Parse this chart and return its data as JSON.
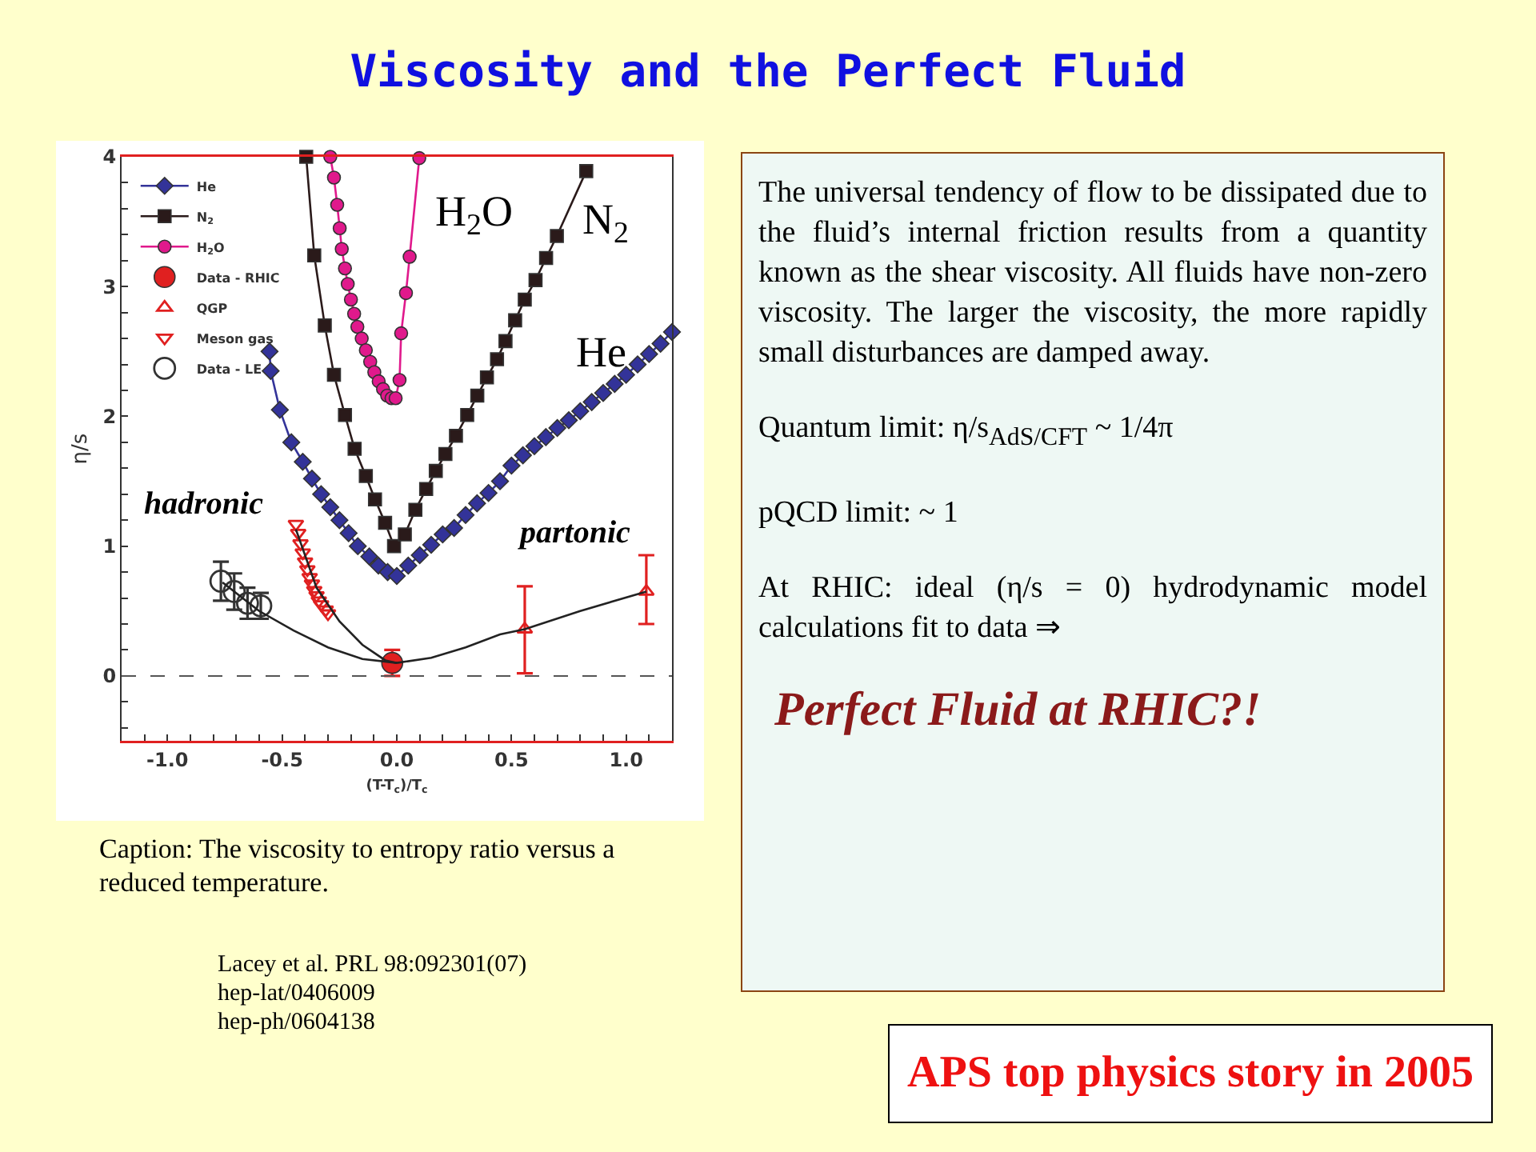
{
  "chart_data": {
    "type": "line",
    "title": "Viscosity and the Perfect Fluid",
    "xlabel": "(T-T$_{c}$)/T$_{c}$",
    "ylabel": "η/s",
    "xlim": [
      -1.2,
      1.2
    ],
    "ylim": [
      -0.5,
      4
    ],
    "xticks": [
      {
        "value": -1.1,
        "label": null
      },
      {
        "value": -1,
        "label": "-1.0"
      },
      {
        "value": -0.9,
        "label": null
      },
      {
        "value": -0.8,
        "label": null
      },
      {
        "value": -0.7,
        "label": null
      },
      {
        "value": -0.6,
        "label": null
      },
      {
        "value": -0.5,
        "label": "-0.5"
      },
      {
        "value": -0.4,
        "label": null
      },
      {
        "value": -0.3,
        "label": null
      },
      {
        "value": -0.2,
        "label": null
      },
      {
        "value": -0.1,
        "label": null
      },
      {
        "value": 0,
        "label": "0.0"
      },
      {
        "value": 0.1,
        "label": null
      },
      {
        "value": 0.2,
        "label": null
      },
      {
        "value": 0.3,
        "label": null
      },
      {
        "value": 0.4,
        "label": null
      },
      {
        "value": 0.5,
        "label": "0.5"
      },
      {
        "value": 0.6,
        "label": null
      },
      {
        "value": 0.7,
        "label": null
      },
      {
        "value": 0.8,
        "label": null
      },
      {
        "value": 0.9,
        "label": null
      },
      {
        "value": 1,
        "label": "1.0"
      },
      {
        "value": 1.1,
        "label": null
      }
    ],
    "yticks": [
      {
        "value": -0.4,
        "label": null
      },
      {
        "value": -0.2,
        "label": null
      },
      0,
      {
        "value": 0.2,
        "label": null
      },
      {
        "value": 0.4,
        "label": null
      },
      {
        "value": 0.6,
        "label": null
      },
      {
        "value": 0.8,
        "label": null
      },
      1,
      {
        "value": 1.2,
        "label": null
      },
      {
        "value": 1.4,
        "label": null
      },
      {
        "value": 1.6,
        "label": null
      },
      {
        "value": 1.8,
        "label": null
      },
      2,
      {
        "value": 2.2,
        "label": null
      },
      {
        "value": 2.4,
        "label": null
      },
      {
        "value": 2.6,
        "label": null
      },
      {
        "value": 2.8,
        "label": null
      },
      3,
      {
        "value": 3.2,
        "label": null
      },
      {
        "value": 3.4,
        "label": null
      },
      {
        "value": 3.6,
        "label": null
      },
      {
        "value": 3.8,
        "label": null
      },
      4
    ],
    "grid": false,
    "legend": "top left",
    "series": [
      {
        "name": "He",
        "type": "line",
        "marker": "diamond",
        "color": "#333399",
        "x": [
          -0.555,
          -0.55,
          -0.51,
          -0.46,
          -0.41,
          -0.37,
          -0.33,
          -0.29,
          -0.25,
          -0.21,
          -0.17,
          -0.12,
          -0.08,
          -0.04,
          0,
          0.05,
          0.1,
          0.15,
          0.2,
          0.25,
          0.3,
          0.35,
          0.4,
          0.45,
          0.5,
          0.55,
          0.6,
          0.65,
          0.7,
          0.75,
          0.8,
          0.85,
          0.9,
          0.95,
          1,
          1.05,
          1.1,
          1.15,
          1.2
        ],
        "values": [
          2.5,
          2.35,
          2.05,
          1.8,
          1.65,
          1.52,
          1.4,
          1.3,
          1.2,
          1.1,
          1.0,
          0.92,
          0.85,
          0.8,
          0.77,
          0.85,
          0.93,
          1.01,
          1.09,
          1.14,
          1.24,
          1.33,
          1.41,
          1.5,
          1.62,
          1.7,
          1.77,
          1.84,
          1.91,
          1.97,
          2.04,
          2.11,
          2.18,
          2.25,
          2.32,
          2.4,
          2.48,
          2.56,
          2.65
        ]
      },
      {
        "name": "N$_{2}$",
        "type": "line",
        "marker": "square",
        "color": "#2a1a1a",
        "x": [
          -0.395,
          -0.36,
          -0.314,
          -0.274,
          -0.226,
          -0.184,
          -0.135,
          -0.095,
          -0.051,
          -0.012,
          0.035,
          0.081,
          0.128,
          0.17,
          0.212,
          0.258,
          0.307,
          0.351,
          0.393,
          0.437,
          0.474,
          0.516,
          0.558,
          0.605,
          0.651,
          0.698,
          0.826
        ],
        "values": [
          4,
          3.24,
          2.7,
          2.32,
          2.01,
          1.75,
          1.54,
          1.36,
          1.18,
          1.0,
          1.09,
          1.28,
          1.44,
          1.58,
          1.71,
          1.85,
          2.01,
          2.16,
          2.3,
          2.44,
          2.58,
          2.74,
          2.9,
          3.05,
          3.22,
          3.39,
          3.89
        ]
      },
      {
        "name": "H$_{2}$O",
        "type": "line",
        "marker": "circle",
        "color": "#e0198c",
        "x": [
          -0.29,
          -0.274,
          -0.26,
          -0.249,
          -0.24,
          -0.226,
          -0.214,
          -0.2,
          -0.186,
          -0.172,
          -0.153,
          -0.135,
          -0.116,
          -0.098,
          -0.079,
          -0.06,
          -0.042,
          -0.023,
          -0.005,
          0.012,
          0.019,
          0.04,
          0.056,
          0.098
        ],
        "values": [
          4,
          3.84,
          3.63,
          3.45,
          3.29,
          3.14,
          3.02,
          2.9,
          2.79,
          2.69,
          2.6,
          2.51,
          2.42,
          2.34,
          2.27,
          2.21,
          2.16,
          2.14,
          2.14,
          2.28,
          2.64,
          2.95,
          3.23,
          3.99
        ]
      },
      {
        "name": "Data - RHIC",
        "type": "scatter",
        "marker": "circle",
        "color": "#e02020",
        "x": [
          -0.02
        ],
        "values": [
          0.1
        ],
        "errors": [
          0.1
        ]
      },
      {
        "name": "QGP",
        "type": "scatter",
        "marker": "triangle",
        "color": "#e02020",
        "x": [
          0.558,
          1.088
        ],
        "values": [
          0.36,
          0.65
        ],
        "errors": [
          [
            0.02,
            0.69
          ],
          [
            0.4,
            0.93
          ]
        ]
      },
      {
        "name": "Meson gas",
        "type": "scatter",
        "marker": "triangle-down",
        "color": "#e02020",
        "x": [
          -0.44,
          -0.43,
          -0.42,
          -0.41,
          -0.4,
          -0.39,
          -0.38,
          -0.37,
          -0.36,
          -0.35,
          -0.34,
          -0.33,
          -0.31,
          -0.3
        ],
        "values": [
          1.17,
          1.1,
          1.02,
          0.95,
          0.88,
          0.82,
          0.76,
          0.71,
          0.66,
          0.62,
          0.58,
          0.55,
          0.51,
          0.48
        ]
      },
      {
        "name": "Data - LE",
        "type": "scatter",
        "marker": "circle",
        "color": "#333333",
        "x": [
          -0.767,
          -0.709,
          -0.651,
          -0.593
        ],
        "values": [
          0.73,
          0.65,
          0.56,
          0.54
        ],
        "errors": [
          0.15,
          0.14,
          0.12,
          0.1
        ]
      },
      {
        "type": "line",
        "marker": "none",
        "color": "#222222",
        "x": [
          -0.44,
          -0.35,
          -0.25,
          -0.15,
          -0.05,
          0
        ],
        "values": [
          1.13,
          0.68,
          0.42,
          0.24,
          0.12,
          0.1
        ]
      },
      {
        "type": "line",
        "marker": "none",
        "color": "#222222",
        "x": [
          -0.76,
          -0.6,
          -0.45,
          -0.3,
          -0.15,
          0
        ],
        "values": [
          0.72,
          0.5,
          0.35,
          0.22,
          0.13,
          0.1
        ]
      },
      {
        "type": "line",
        "marker": "none",
        "color": "#222222",
        "x": [
          0,
          0.15,
          0.3,
          0.45,
          0.558,
          0.8,
          1.088
        ],
        "values": [
          0.1,
          0.14,
          0.22,
          0.32,
          0.36,
          0.5,
          0.65
        ]
      }
    ],
    "ref_lines": [
      {
        "axis": "y",
        "value": 0,
        "line_style": "dashed",
        "color": "#555555"
      }
    ],
    "annotations": [
      "H$_{2}$O",
      "N$_{2}$",
      "He",
      "hadronic",
      "partonic",
      "The universal tendency of flow to be dissipated due to the fluid’s internal friction results from a quantity known as the shear viscosity. All fluids have non-zero viscosity. The larger the viscosity, the more rapidly small disturbances are damped away.",
      "Quantum limit:  η/s$_{AdS/CFT}$ ~ 1/4π",
      "pQCD limit:  ~ 1",
      "At RHIC: ideal (η/s = 0) hydrodynamic model calculations fit to data ⇒",
      "Perfect Fluid at RHIC?!",
      "Caption: The viscosity to entropy ratio versus a reduced temperature.",
      "Lacey et al. PRL 98:092301(07)",
      "hep-lat/0406009",
      "hep-ph/0604138",
      "APS top physics story in 2005"
    ]
  }
}
